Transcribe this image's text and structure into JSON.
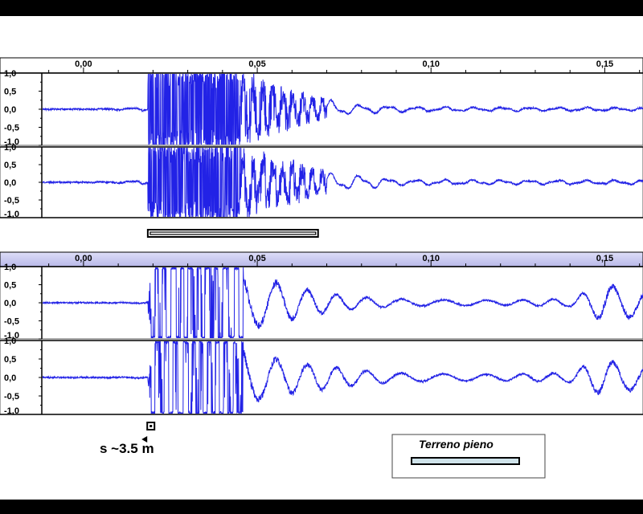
{
  "colors": {
    "waveform": "#2222e6",
    "ruler_top": "#ffffff",
    "ruler_bottom": "#c8c8f0",
    "band": "#000000",
    "legend_swatch": "#cfe3ea"
  },
  "chart_data": [
    {
      "type": "line",
      "title": "",
      "xlabel": "",
      "ylabel": "",
      "x_ticks": [
        "0,00",
        "0,05",
        "0,10",
        "0,15"
      ],
      "x_tick_values": [
        0.0,
        0.05,
        0.1,
        0.15
      ],
      "xlim": [
        -0.012,
        0.161
      ],
      "y_ticks": [
        "1,0",
        "0,5",
        "0,0",
        "-0,5",
        "-1,0"
      ],
      "ylim": [
        -1.0,
        1.0
      ],
      "grid": false,
      "series": [
        {
          "channel": 1,
          "x": [
            0.0,
            0.01,
            0.017,
            0.0185,
            0.02,
            0.03,
            0.04,
            0.05,
            0.055,
            0.06,
            0.065,
            0.07,
            0.075,
            0.08,
            0.09,
            0.1,
            0.12,
            0.14,
            0.16
          ],
          "values": [
            0.0,
            0.02,
            0.05,
            0.0,
            1.0,
            1.0,
            1.0,
            0.75,
            0.5,
            0.45,
            0.3,
            0.25,
            0.15,
            0.12,
            0.08,
            0.06,
            0.05,
            0.05,
            0.04
          ]
        },
        {
          "channel": 2,
          "x": [
            0.0,
            0.01,
            0.017,
            0.0185,
            0.02,
            0.03,
            0.04,
            0.05,
            0.055,
            0.06,
            0.065,
            0.07,
            0.075,
            0.08,
            0.09,
            0.1,
            0.12,
            0.14,
            0.16
          ],
          "values": [
            0.0,
            0.02,
            0.06,
            0.0,
            1.0,
            1.0,
            1.0,
            0.7,
            0.55,
            0.5,
            0.35,
            0.25,
            0.2,
            0.2,
            0.08,
            0.07,
            0.06,
            0.06,
            0.06
          ]
        }
      ],
      "marker_bar": {
        "x_start": 0.0185,
        "x_end": 0.0675
      }
    },
    {
      "type": "line",
      "title": "",
      "xlabel": "",
      "ylabel": "",
      "x_ticks": [
        "0,00",
        "0,05",
        "0,10",
        "0,15"
      ],
      "x_tick_values": [
        0.0,
        0.05,
        0.1,
        0.15
      ],
      "xlim": [
        -0.012,
        0.161
      ],
      "y_ticks": [
        "1,0",
        "0,5",
        "0,0",
        "-0,5",
        "-1,0"
      ],
      "ylim": [
        -1.0,
        1.0
      ],
      "grid": false,
      "series": [
        {
          "channel": 1,
          "x": [
            0.0,
            0.015,
            0.0185,
            0.0195,
            0.02,
            0.03,
            0.045,
            0.046,
            0.05,
            0.06,
            0.07,
            0.08,
            0.09,
            0.1,
            0.12,
            0.14,
            0.145,
            0.15,
            0.16
          ],
          "values": [
            0.0,
            0.01,
            0.02,
            0.3,
            1.0,
            1.0,
            1.0,
            0.8,
            0.65,
            0.45,
            0.25,
            0.15,
            0.1,
            0.08,
            0.07,
            0.1,
            0.3,
            0.5,
            0.35
          ]
        },
        {
          "channel": 2,
          "x": [
            0.0,
            0.015,
            0.0185,
            0.0195,
            0.02,
            0.03,
            0.045,
            0.046,
            0.05,
            0.06,
            0.07,
            0.08,
            0.09,
            0.1,
            0.12,
            0.14,
            0.145,
            0.15,
            0.16
          ],
          "values": [
            0.0,
            0.01,
            0.02,
            0.3,
            1.0,
            1.0,
            1.0,
            0.8,
            0.6,
            0.4,
            0.3,
            0.2,
            0.12,
            0.1,
            0.08,
            0.12,
            0.35,
            0.45,
            0.3
          ]
        }
      ],
      "marker_square": {
        "x": 0.0195
      }
    }
  ],
  "annotation": {
    "text": "s ~3.5 m"
  },
  "legend": {
    "label": "Terreno pieno"
  }
}
